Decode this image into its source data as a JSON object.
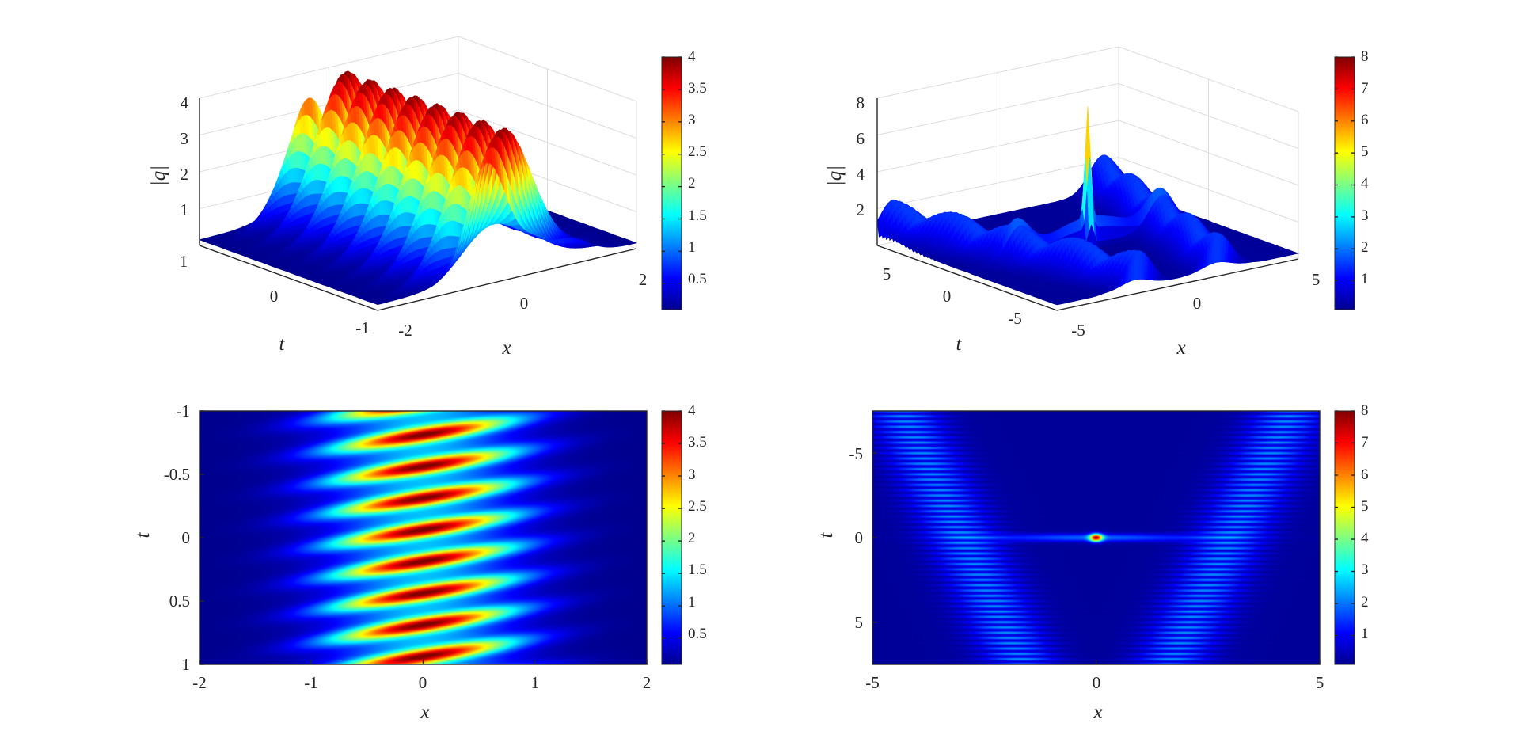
{
  "colormap": "jet",
  "colors": {
    "jet_low": "#00008f",
    "jet_mid": "#7fff7f",
    "jet_high": "#800000",
    "axis": "#262626",
    "grid": "#dcdcdc"
  },
  "chart_data": [
    {
      "id": "top-left",
      "type": "surface",
      "xlabel": "x",
      "ylabel": "t",
      "zlabel": "|q|",
      "xlim": [
        -2,
        2
      ],
      "ylim": [
        -1,
        1
      ],
      "zlim": [
        0,
        4
      ],
      "xticks": [
        "-2",
        "0",
        "2"
      ],
      "yticks": [
        "1",
        "0",
        "-1"
      ],
      "zticks": [
        "1",
        "2",
        "3",
        "4"
      ],
      "grid": true,
      "colorbar": {
        "min": 0.1,
        "max": 4,
        "ticks": [
          "0.5",
          "1",
          "1.5",
          "2",
          "2.5",
          "3",
          "3.5",
          "4"
        ]
      },
      "pattern": "periodic breathers along t, peak |q| ≈ 4 near x = 0"
    },
    {
      "id": "top-right",
      "type": "surface",
      "xlabel": "x",
      "ylabel": "t",
      "zlabel": "|q|",
      "xlim": [
        -5,
        5
      ],
      "ylim": [
        -7.5,
        7.5
      ],
      "zlim": [
        0,
        8
      ],
      "xticks": [
        "-5",
        "0",
        "5"
      ],
      "yticks": [
        "5",
        "0",
        "-5"
      ],
      "zticks": [
        "2",
        "4",
        "6",
        "8"
      ],
      "grid": true,
      "colorbar": {
        "min": 0.1,
        "max": 8,
        "ticks": [
          "1",
          "2",
          "3",
          "4",
          "5",
          "6",
          "7",
          "8"
        ]
      },
      "pattern": "two oscillating soliton ridges crossing at t = 0 with peak |q| ≈ 8 at origin"
    },
    {
      "id": "bottom-left",
      "type": "heatmap",
      "xlabel": "x",
      "ylabel": "t",
      "xlim": [
        -2,
        2
      ],
      "ylim": [
        -1,
        1
      ],
      "xticks": [
        "-2",
        "-1",
        "0",
        "1",
        "2"
      ],
      "yticks": [
        "-1",
        "-0.5",
        "0",
        "0.5",
        "1"
      ],
      "colorbar": {
        "min": 0.1,
        "max": 4,
        "ticks": [
          "0.5",
          "1",
          "1.5",
          "2",
          "2.5",
          "3",
          "3.5",
          "4"
        ]
      }
    },
    {
      "id": "bottom-right",
      "type": "heatmap",
      "xlabel": "x",
      "ylabel": "t",
      "xlim": [
        -5,
        5
      ],
      "ylim": [
        -7.5,
        7.5
      ],
      "xticks": [
        "-5",
        "0",
        "5"
      ],
      "yticks": [
        "-5",
        "0",
        "5"
      ],
      "colorbar": {
        "min": 0.1,
        "max": 8,
        "ticks": [
          "1",
          "2",
          "3",
          "4",
          "5",
          "6",
          "7",
          "8"
        ]
      }
    }
  ]
}
